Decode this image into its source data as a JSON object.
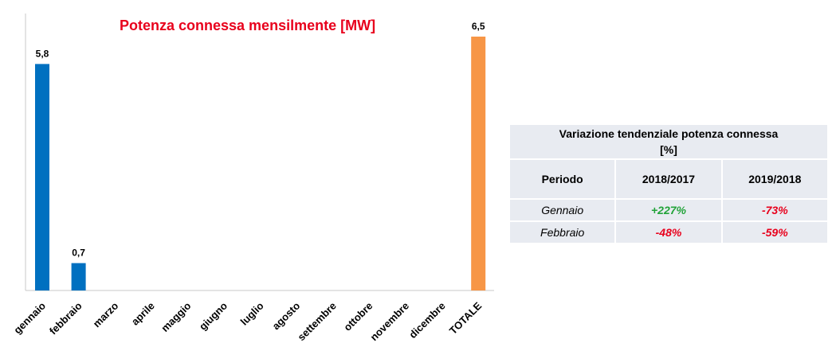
{
  "chart_data": {
    "type": "bar",
    "title": "Potenza connessa mensilmente [MW]",
    "xlabel": "",
    "ylabel": "",
    "categories": [
      "gennaio",
      "febbraio",
      "marzo",
      "aprile",
      "maggio",
      "giugno",
      "luglio",
      "agosto",
      "settembre",
      "ottobre",
      "novembre",
      "dicembre",
      "TOTALE"
    ],
    "values": [
      5.8,
      0.7,
      null,
      null,
      null,
      null,
      null,
      null,
      null,
      null,
      null,
      null,
      6.5
    ],
    "value_labels": [
      "5,8",
      "0,7",
      "",
      "",
      "",
      "",
      "",
      "",
      "",
      "",
      "",
      "",
      "6,5"
    ],
    "ylim": [
      0,
      6.5
    ],
    "grid": false,
    "colors": {
      "month": "#0070c0",
      "total": "#f79646",
      "title": "#e8001c"
    }
  },
  "table": {
    "title": "Variazione tendenziale potenza connessa [%]",
    "headers": [
      "Periodo",
      "2018/2017",
      "2019/2018"
    ],
    "rows": [
      {
        "period": "Gennaio",
        "v1": "+227%",
        "v2": "-73%"
      },
      {
        "period": "Febbraio",
        "v1": "-48%",
        "v2": "-59%"
      }
    ],
    "colors": {
      "positive": "#22a339",
      "negative": "#e8001c",
      "cell_bg": "#e8ebf1"
    }
  }
}
